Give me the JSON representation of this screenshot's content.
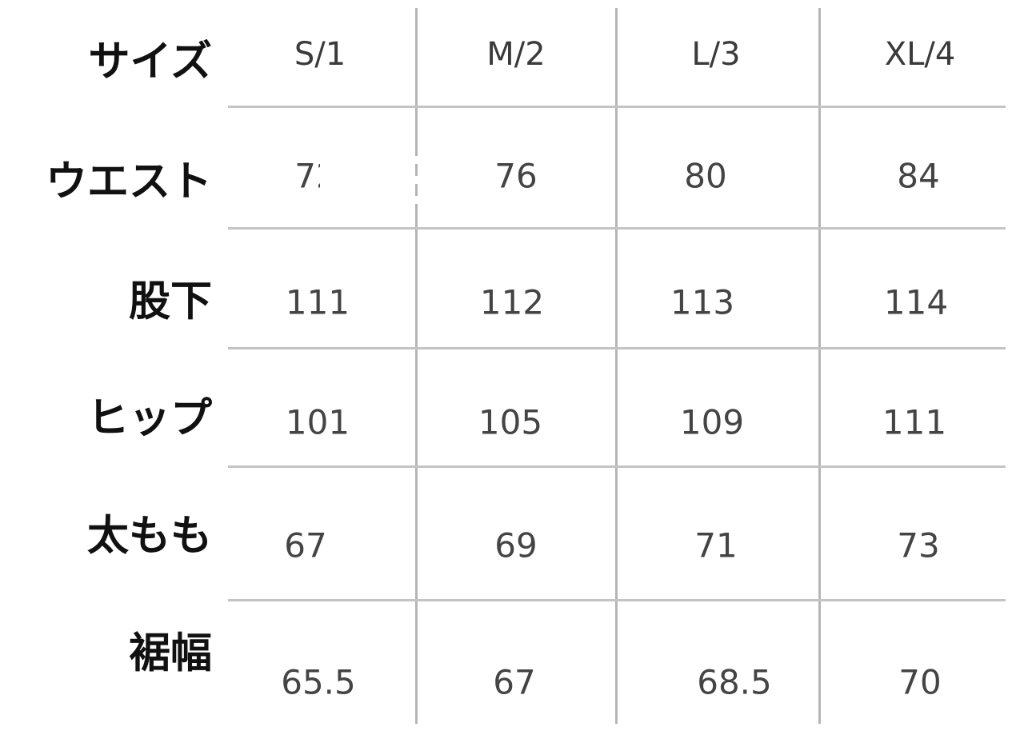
{
  "table": {
    "header_label": "サイズ",
    "columns": [
      "S/1",
      "M/2",
      "L/3",
      "XL/4"
    ],
    "rows": [
      {
        "label": "ウエスト",
        "values": [
          "72",
          "76",
          "80",
          "84"
        ]
      },
      {
        "label": "股下",
        "values": [
          "111",
          "112",
          "113",
          "114"
        ]
      },
      {
        "label": "ヒップ",
        "values": [
          "101",
          "105",
          "109",
          "111"
        ]
      },
      {
        "label": "太もも",
        "values": [
          "67",
          "69",
          "71",
          "73"
        ]
      },
      {
        "label": "裾幅",
        "values": [
          "65.5",
          "67",
          "68.5",
          "70"
        ]
      }
    ]
  }
}
